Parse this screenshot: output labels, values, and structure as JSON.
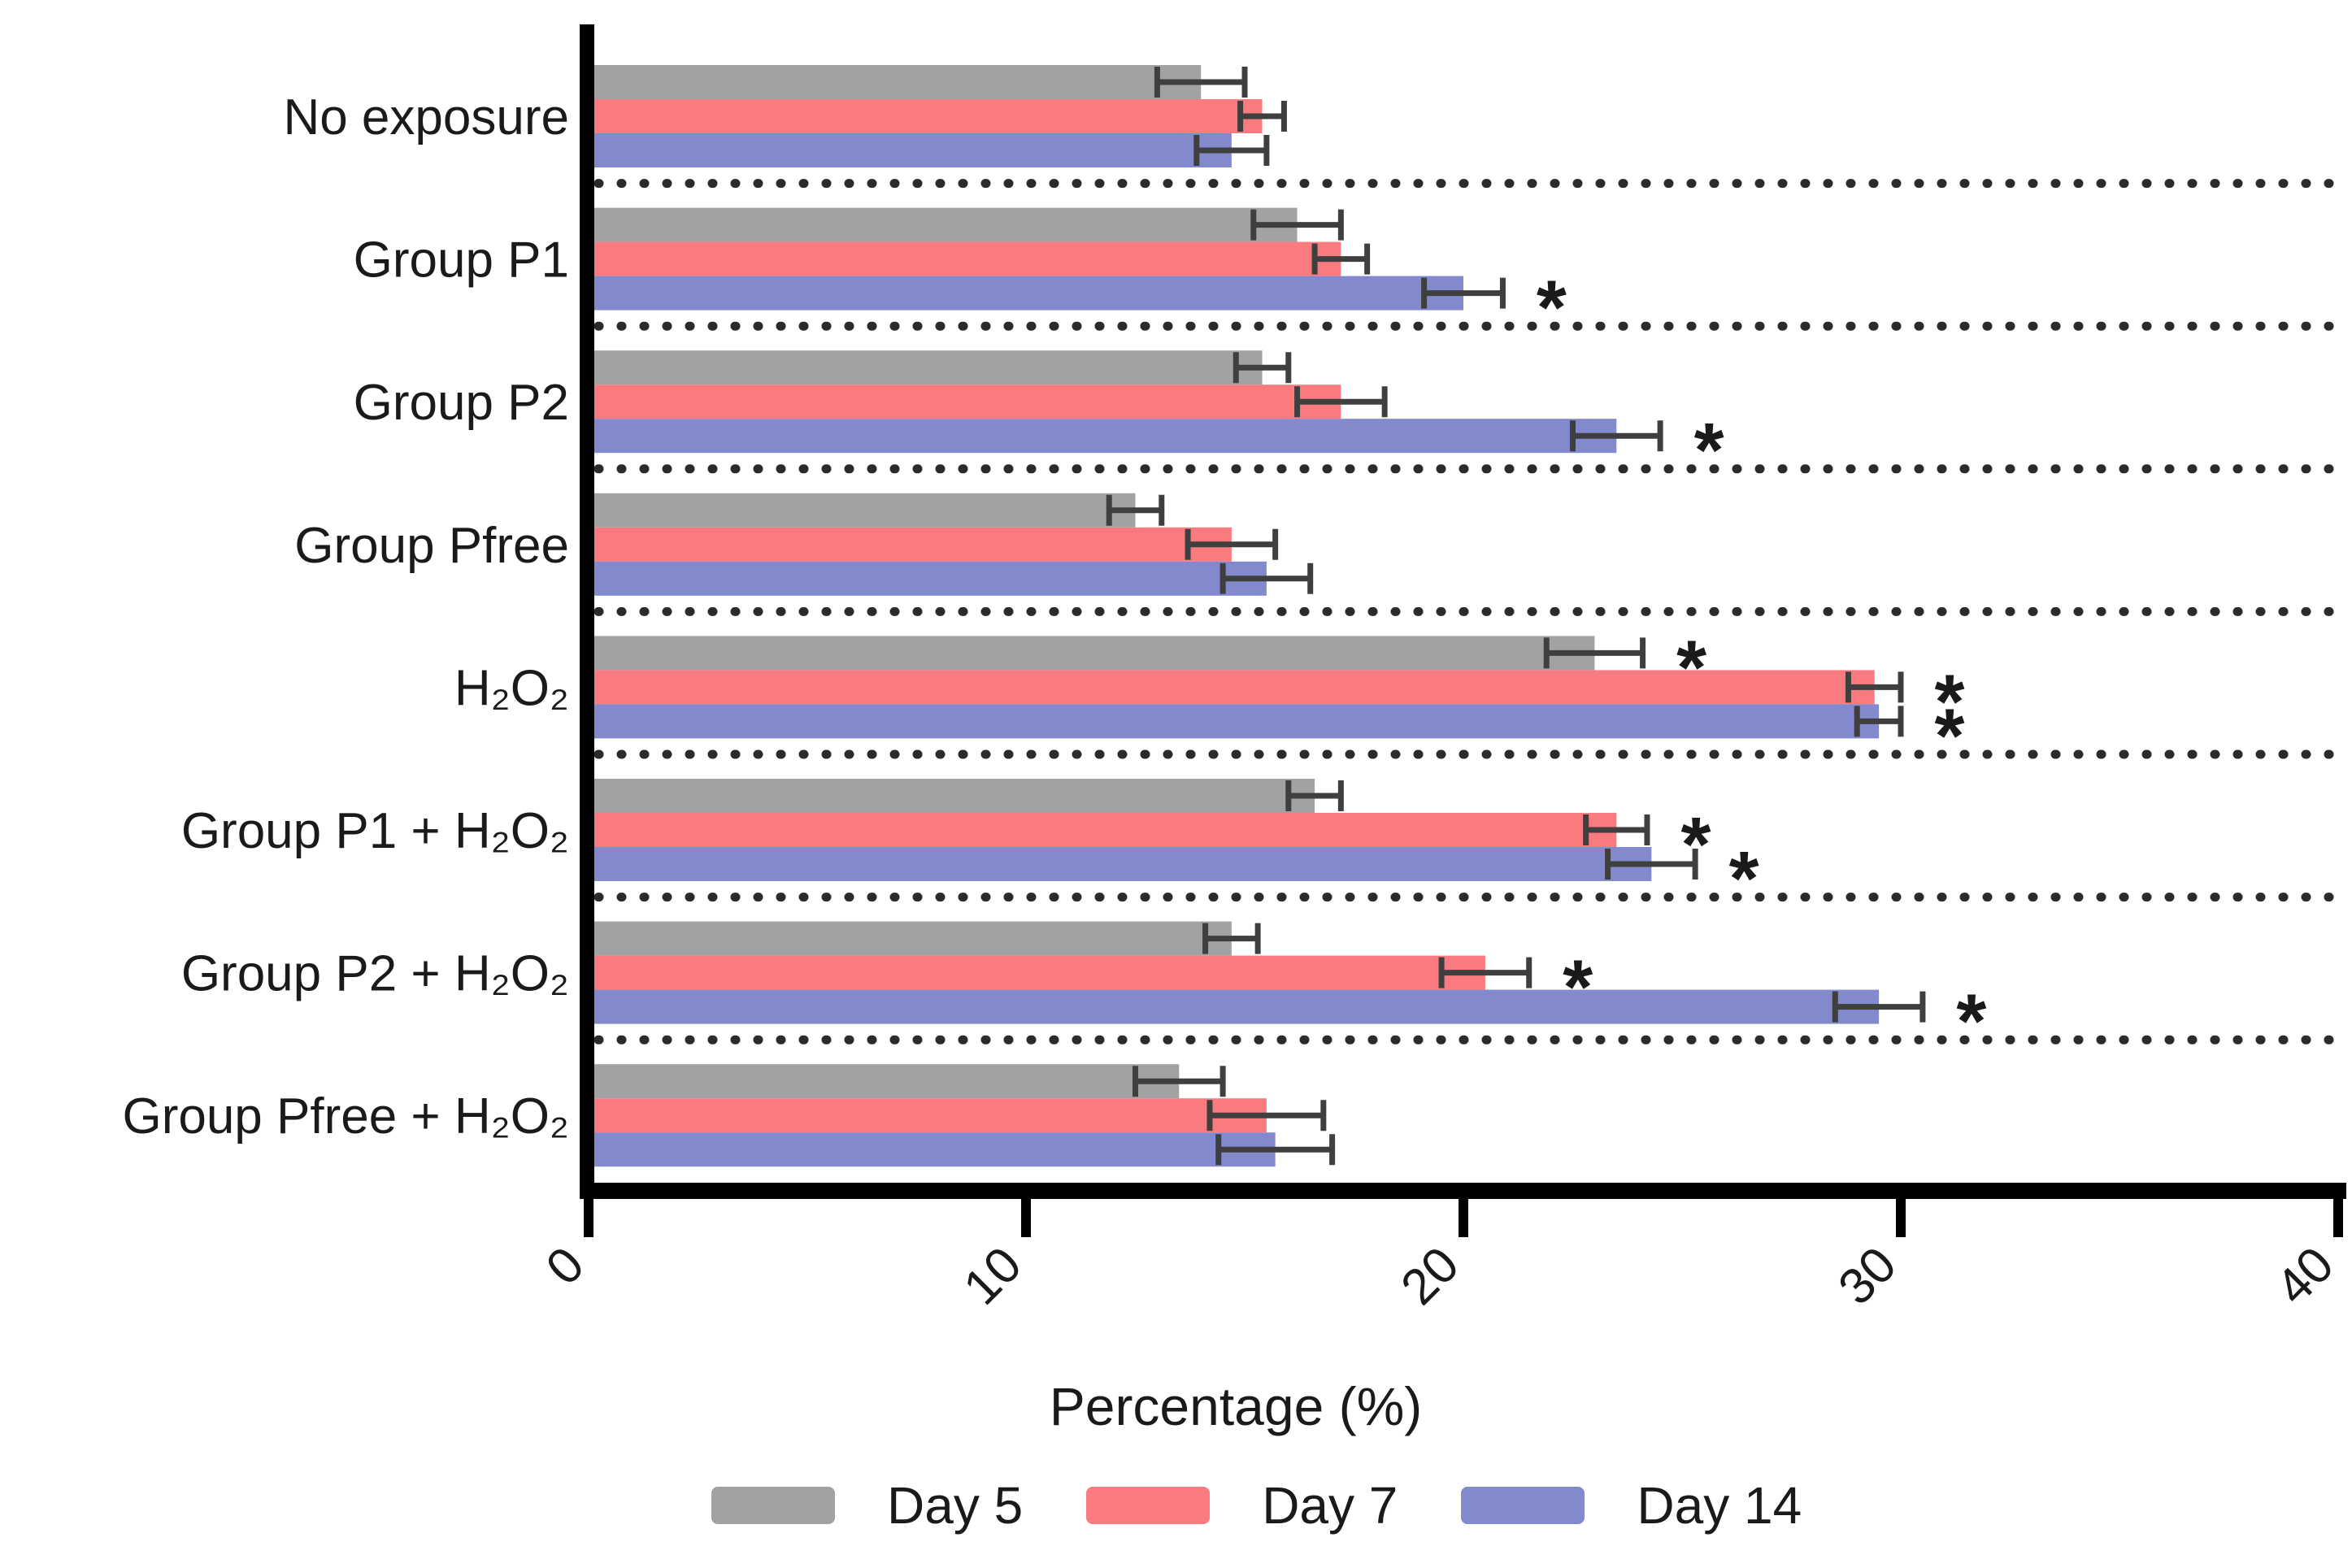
{
  "chart_data": {
    "type": "bar",
    "orientation": "horizontal",
    "title": "",
    "xlabel": "Percentage (%)",
    "ylabel": "",
    "xlim": [
      0,
      40
    ],
    "xticks": [
      0,
      10,
      20,
      30,
      40
    ],
    "grid": false,
    "legend_position": "bottom",
    "group_separator_style": "dotted",
    "significance_marker": "*",
    "categories": [
      "No exposure",
      "Group P1",
      "Group P2",
      "Group Pfree",
      "H₂O₂",
      "Group P1 + H₂O₂",
      "Group P2 + H₂O₂",
      "Group Pfree + H₂O₂"
    ],
    "series": [
      {
        "name": "Day 5",
        "color": "#a2a2a4",
        "values": [
          14.0,
          16.2,
          15.4,
          12.5,
          23.0,
          16.6,
          14.7,
          13.5
        ],
        "errors": [
          1.0,
          1.0,
          0.6,
          0.6,
          1.1,
          0.6,
          0.6,
          1.0
        ],
        "significant": [
          false,
          false,
          false,
          false,
          true,
          false,
          false,
          false
        ]
      },
      {
        "name": "Day 7",
        "color": "#f97b80",
        "values": [
          15.4,
          17.2,
          17.2,
          14.7,
          29.4,
          23.5,
          20.5,
          15.5
        ],
        "errors": [
          0.5,
          0.6,
          1.0,
          1.0,
          0.6,
          0.7,
          1.0,
          1.3
        ],
        "significant": [
          false,
          false,
          false,
          false,
          true,
          true,
          true,
          false
        ]
      },
      {
        "name": "Day 14",
        "color": "#8289cd",
        "values": [
          14.7,
          20.0,
          23.5,
          15.5,
          29.5,
          24.3,
          29.5,
          15.7
        ],
        "errors": [
          0.8,
          0.9,
          1.0,
          1.0,
          0.5,
          1.0,
          1.0,
          1.3
        ],
        "significant": [
          false,
          true,
          true,
          false,
          true,
          true,
          true,
          false
        ]
      }
    ],
    "colors": {
      "axis": "#000000",
      "text": "#1a1a1a",
      "error_bar": "#3f3f3f",
      "separator_dots": "#2b2b2b"
    }
  }
}
